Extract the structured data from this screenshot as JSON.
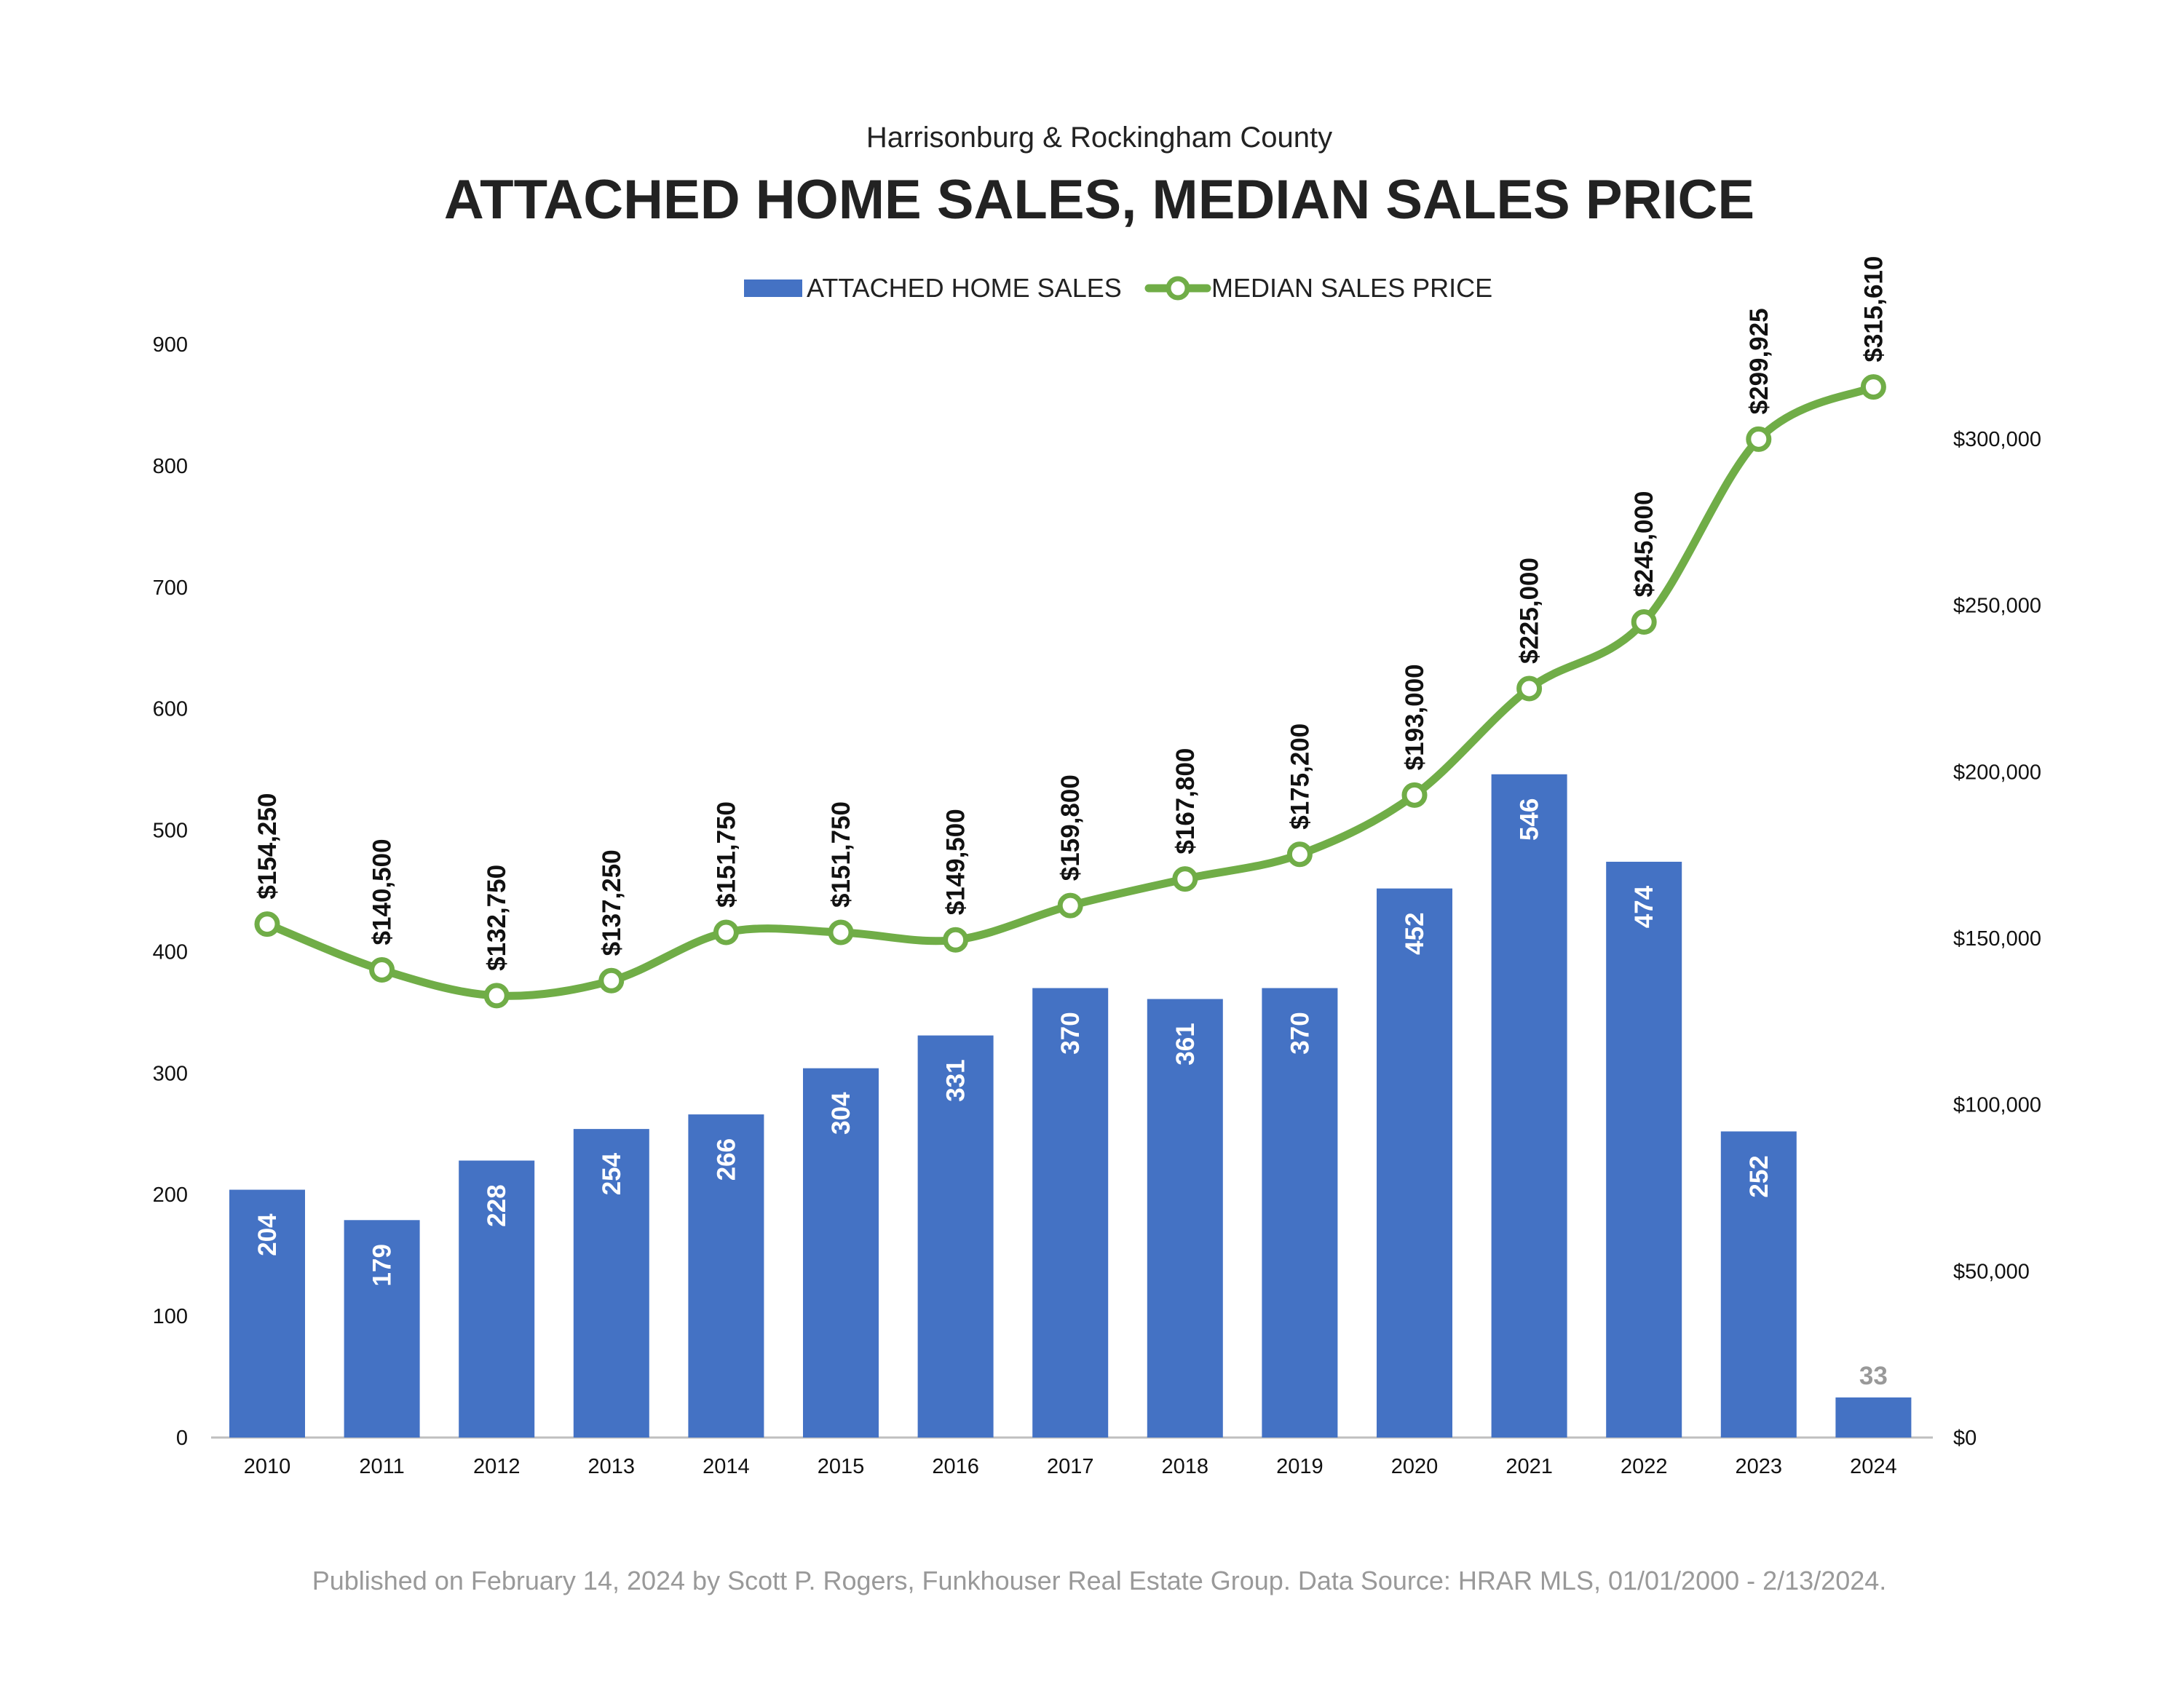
{
  "colors": {
    "bar": "#4472C4",
    "line": "#70AD47",
    "footer": "#999999"
  },
  "chart_data": {
    "type": "bar",
    "subtitle": "Harrisonburg & Rockingham County",
    "title": "ATTACHED HOME SALES, MEDIAN SALES PRICE",
    "categories": [
      "2010",
      "2011",
      "2012",
      "2013",
      "2014",
      "2015",
      "2016",
      "2017",
      "2018",
      "2019",
      "2020",
      "2021",
      "2022",
      "2023",
      "2024"
    ],
    "series": [
      {
        "name": "ATTACHED HOME SALES",
        "type": "bar",
        "axis": "left",
        "values": [
          204,
          179,
          228,
          254,
          266,
          304,
          331,
          370,
          361,
          370,
          452,
          546,
          474,
          252,
          33
        ]
      },
      {
        "name": "MEDIAN SALES PRICE",
        "type": "line",
        "axis": "right",
        "smooth": true,
        "values": [
          154250,
          140500,
          132750,
          137250,
          151750,
          151750,
          149500,
          159800,
          167800,
          175200,
          193000,
          225000,
          245000,
          299925,
          315610
        ],
        "labels": [
          "$154,250",
          "$140,500",
          "$132,750",
          "$137,250",
          "$151,750",
          "$151,750",
          "$149,500",
          "$159,800",
          "$167,800",
          "$175,200",
          "$193,000",
          "$225,000",
          "$245,000",
          "$299,925",
          "$315,610"
        ]
      }
    ],
    "left_axis": {
      "range": [
        0,
        900
      ],
      "ticks": [
        "0",
        "100",
        "200",
        "300",
        "400",
        "500",
        "600",
        "700",
        "800",
        "900"
      ]
    },
    "right_axis": {
      "range": [
        0,
        325000
      ],
      "ticks": [
        "$0",
        "$50,000",
        "$100,000",
        "$150,000",
        "$200,000",
        "$250,000",
        "$300,000"
      ]
    },
    "legend_placement": "top",
    "grid": false
  },
  "footer": "Published on February 14, 2024 by Scott P. Rogers, Funkhouser Real Estate Group. Data Source: HRAR MLS, 01/01/2000 - 2/13/2024."
}
